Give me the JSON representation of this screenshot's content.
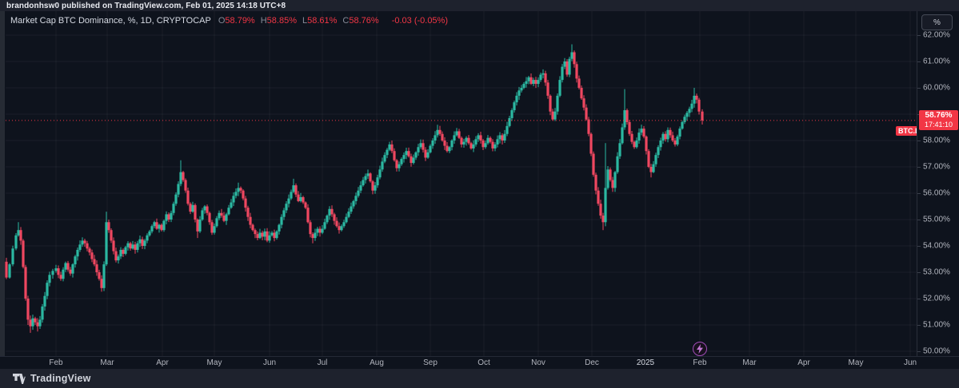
{
  "header": {
    "publish_line": "brandonhsw0 published on TradingView.com, Feb 01, 2025 14:18 UTC+8"
  },
  "legend": {
    "title": "Market Cap BTC Dominance, %, 1D, CRYPTOCAP",
    "ohlc": [
      {
        "label": "O",
        "value": "58.79%"
      },
      {
        "label": "H",
        "value": "58.85%"
      },
      {
        "label": "L",
        "value": "58.61%"
      },
      {
        "label": "C",
        "value": "58.76%"
      }
    ],
    "change": "-0.03 (-0.05%)"
  },
  "price_axis": {
    "unit_button_label": "%",
    "labels": [
      {
        "value": 62,
        "label": "62.00%"
      },
      {
        "value": 61,
        "label": "61.00%"
      },
      {
        "value": 60,
        "label": "60.00%"
      },
      {
        "value": 59,
        "label": "59.00%"
      },
      {
        "value": 58,
        "label": "58.00%"
      },
      {
        "value": 57,
        "label": "57.00%"
      },
      {
        "value": 56,
        "label": "56.00%"
      },
      {
        "value": 55,
        "label": "55.00%"
      },
      {
        "value": 54,
        "label": "54.00%"
      },
      {
        "value": 53,
        "label": "53.00%"
      },
      {
        "value": 52,
        "label": "52.00%"
      },
      {
        "value": 51,
        "label": "51.00%"
      },
      {
        "value": 50,
        "label": "50.00%"
      }
    ]
  },
  "last_price": {
    "symbol_label": "BTC.D",
    "price": "58.76%",
    "countdown": "17:41:10",
    "value": 58.76,
    "color": "#f23645"
  },
  "time_axis": {
    "ticks": [
      {
        "label": "Feb",
        "x": 70,
        "year": false
      },
      {
        "label": "Mar",
        "x": 134,
        "year": false
      },
      {
        "label": "Apr",
        "x": 203,
        "year": false
      },
      {
        "label": "May",
        "x": 268,
        "year": false
      },
      {
        "label": "Jun",
        "x": 337,
        "year": false
      },
      {
        "label": "Jul",
        "x": 403,
        "year": false
      },
      {
        "label": "Aug",
        "x": 471,
        "year": false
      },
      {
        "label": "Sep",
        "x": 538,
        "year": false
      },
      {
        "label": "Oct",
        "x": 605,
        "year": false
      },
      {
        "label": "Nov",
        "x": 673,
        "year": false
      },
      {
        "label": "Dec",
        "x": 740,
        "year": false
      },
      {
        "label": "2025",
        "x": 807,
        "year": true
      },
      {
        "label": "Feb",
        "x": 875,
        "year": false
      },
      {
        "label": "Mar",
        "x": 937,
        "year": false
      },
      {
        "label": "Apr",
        "x": 1005,
        "year": false
      },
      {
        "label": "May",
        "x": 1070,
        "year": false
      },
      {
        "label": "Jun",
        "x": 1138,
        "year": false
      }
    ]
  },
  "idea_marker": {
    "x": 875,
    "icon": "lightning-bolt-icon"
  },
  "footer": {
    "brand": "TradingView"
  },
  "chart_data": {
    "type": "candlestick",
    "title": "Market Cap BTC Dominance",
    "symbol": "CRYPTOCAP:BTC.D",
    "interval": "1D",
    "unit": "%",
    "y_range": [
      50,
      62
    ],
    "grid": true,
    "up_color": "#2bb8a2",
    "down_color": "#ef4760",
    "last_price_line": {
      "value": 58.76,
      "style": "dotted",
      "color": "#f23645"
    },
    "anchors_note": "close-value trajectory read off the chart; x = px position (Jan 2024 -> Feb 1 2025), v = BTC dominance %",
    "anchors": [
      [
        3,
        53.4
      ],
      [
        8,
        52.8
      ],
      [
        12,
        53.3
      ],
      [
        16,
        53.9
      ],
      [
        20,
        54.4
      ],
      [
        23,
        54.6
      ],
      [
        26,
        54.2
      ],
      [
        29,
        53.2
      ],
      [
        32,
        52.0
      ],
      [
        35,
        51.2
      ],
      [
        38,
        50.95
      ],
      [
        41,
        51.25
      ],
      [
        44,
        51.1
      ],
      [
        47,
        50.95
      ],
      [
        50,
        51.2
      ],
      [
        53,
        51.7
      ],
      [
        56,
        52.1
      ],
      [
        59,
        52.6
      ],
      [
        62,
        52.9
      ],
      [
        66,
        53.05
      ],
      [
        70,
        53.15
      ],
      [
        73,
        52.9
      ],
      [
        76,
        52.75
      ],
      [
        79,
        53.1
      ],
      [
        82,
        53.35
      ],
      [
        85,
        53.1
      ],
      [
        88,
        52.95
      ],
      [
        91,
        53.3
      ],
      [
        94,
        53.6
      ],
      [
        97,
        53.85
      ],
      [
        100,
        54.05
      ],
      [
        103,
        54.2
      ],
      [
        106,
        54.1
      ],
      [
        109,
        53.9
      ],
      [
        112,
        53.75
      ],
      [
        115,
        53.5
      ],
      [
        118,
        53.3
      ],
      [
        121,
        53.0
      ],
      [
        124,
        52.75
      ],
      [
        127,
        52.4
      ],
      [
        130,
        53.3
      ],
      [
        133,
        54.9
      ],
      [
        136,
        54.6
      ],
      [
        139,
        54.2
      ],
      [
        142,
        53.8
      ],
      [
        145,
        53.45
      ],
      [
        148,
        53.6
      ],
      [
        151,
        53.85
      ],
      [
        154,
        53.7
      ],
      [
        157,
        53.95
      ],
      [
        160,
        54.1
      ],
      [
        163,
        53.9
      ],
      [
        166,
        54.05
      ],
      [
        169,
        53.85
      ],
      [
        172,
        54.1
      ],
      [
        175,
        54.25
      ],
      [
        178,
        54.0
      ],
      [
        181,
        54.2
      ],
      [
        184,
        54.4
      ],
      [
        187,
        54.55
      ],
      [
        190,
        54.75
      ],
      [
        193,
        54.9
      ],
      [
        196,
        54.65
      ],
      [
        199,
        54.8
      ],
      [
        202,
        54.6
      ],
      [
        205,
        54.95
      ],
      [
        208,
        55.2
      ],
      [
        211,
        55.0
      ],
      [
        214,
        55.25
      ],
      [
        217,
        55.6
      ],
      [
        220,
        55.95
      ],
      [
        223,
        56.35
      ],
      [
        226,
        56.8
      ],
      [
        229,
        56.5
      ],
      [
        232,
        56.1
      ],
      [
        235,
        55.6
      ],
      [
        238,
        55.3
      ],
      [
        241,
        55.55
      ],
      [
        244,
        55.0
      ],
      [
        247,
        54.55
      ],
      [
        250,
        55.0
      ],
      [
        253,
        55.35
      ],
      [
        256,
        55.5
      ],
      [
        259,
        55.25
      ],
      [
        262,
        54.9
      ],
      [
        265,
        54.5
      ],
      [
        268,
        54.75
      ],
      [
        271,
        55.05
      ],
      [
        274,
        55.25
      ],
      [
        277,
        55.15
      ],
      [
        280,
        54.95
      ],
      [
        283,
        55.2
      ],
      [
        286,
        55.45
      ],
      [
        289,
        55.65
      ],
      [
        292,
        55.9
      ],
      [
        295,
        56.05
      ],
      [
        298,
        56.2
      ],
      [
        301,
        56.1
      ],
      [
        304,
        55.8
      ],
      [
        307,
        55.45
      ],
      [
        310,
        55.1
      ],
      [
        313,
        54.8
      ],
      [
        316,
        54.6
      ],
      [
        319,
        54.45
      ],
      [
        322,
        54.3
      ],
      [
        325,
        54.5
      ],
      [
        328,
        54.35
      ],
      [
        331,
        54.55
      ],
      [
        334,
        54.2
      ],
      [
        337,
        54.4
      ],
      [
        340,
        54.5
      ],
      [
        343,
        54.3
      ],
      [
        346,
        54.55
      ],
      [
        349,
        54.8
      ],
      [
        352,
        55.1
      ],
      [
        355,
        55.35
      ],
      [
        358,
        55.6
      ],
      [
        361,
        55.8
      ],
      [
        364,
        56.05
      ],
      [
        367,
        56.3
      ],
      [
        370,
        55.95
      ],
      [
        373,
        55.7
      ],
      [
        376,
        55.85
      ],
      [
        379,
        55.65
      ],
      [
        382,
        55.45
      ],
      [
        385,
        54.9
      ],
      [
        388,
        54.45
      ],
      [
        391,
        54.3
      ],
      [
        394,
        54.5
      ],
      [
        397,
        54.65
      ],
      [
        400,
        54.5
      ],
      [
        403,
        54.65
      ],
      [
        406,
        54.9
      ],
      [
        409,
        55.15
      ],
      [
        412,
        55.4
      ],
      [
        415,
        55.2
      ],
      [
        418,
        54.95
      ],
      [
        421,
        54.75
      ],
      [
        424,
        54.6
      ],
      [
        427,
        54.75
      ],
      [
        430,
        54.9
      ],
      [
        433,
        55.1
      ],
      [
        436,
        55.3
      ],
      [
        439,
        55.5
      ],
      [
        442,
        55.7
      ],
      [
        445,
        55.9
      ],
      [
        448,
        56.1
      ],
      [
        451,
        56.3
      ],
      [
        454,
        56.5
      ],
      [
        457,
        56.65
      ],
      [
        460,
        56.75
      ],
      [
        463,
        56.45
      ],
      [
        466,
        56.1
      ],
      [
        469,
        56.3
      ],
      [
        472,
        56.6
      ],
      [
        475,
        56.9
      ],
      [
        478,
        57.2
      ],
      [
        481,
        57.45
      ],
      [
        484,
        57.65
      ],
      [
        487,
        57.85
      ],
      [
        490,
        57.6
      ],
      [
        493,
        57.25
      ],
      [
        496,
        56.95
      ],
      [
        499,
        57.1
      ],
      [
        502,
        57.3
      ],
      [
        505,
        57.45
      ],
      [
        508,
        57.6
      ],
      [
        511,
        57.4
      ],
      [
        514,
        57.15
      ],
      [
        517,
        57.35
      ],
      [
        520,
        57.55
      ],
      [
        523,
        57.75
      ],
      [
        526,
        57.9
      ],
      [
        529,
        57.65
      ],
      [
        532,
        57.35
      ],
      [
        535,
        57.55
      ],
      [
        538,
        57.8
      ],
      [
        541,
        58.0
      ],
      [
        544,
        58.2
      ],
      [
        547,
        58.4
      ],
      [
        550,
        58.25
      ],
      [
        553,
        58.0
      ],
      [
        556,
        57.8
      ],
      [
        559,
        57.6
      ],
      [
        562,
        57.75
      ],
      [
        565,
        58.0
      ],
      [
        568,
        58.2
      ],
      [
        571,
        58.35
      ],
      [
        574,
        58.1
      ],
      [
        577,
        57.85
      ],
      [
        580,
        57.95
      ],
      [
        583,
        58.1
      ],
      [
        586,
        57.9
      ],
      [
        589,
        57.7
      ],
      [
        592,
        57.85
      ],
      [
        595,
        58.05
      ],
      [
        598,
        58.2
      ],
      [
        601,
        58.0
      ],
      [
        604,
        57.75
      ],
      [
        607,
        57.9
      ],
      [
        610,
        58.1
      ],
      [
        613,
        57.95
      ],
      [
        616,
        57.7
      ],
      [
        619,
        57.85
      ],
      [
        622,
        58.05
      ],
      [
        625,
        58.2
      ],
      [
        628,
        58.0
      ],
      [
        631,
        58.25
      ],
      [
        634,
        58.55
      ],
      [
        637,
        58.85
      ],
      [
        640,
        59.15
      ],
      [
        643,
        59.45
      ],
      [
        646,
        59.7
      ],
      [
        649,
        59.9
      ],
      [
        652,
        60.0
      ],
      [
        655,
        60.15
      ],
      [
        658,
        60.25
      ],
      [
        661,
        60.4
      ],
      [
        664,
        60.15
      ],
      [
        667,
        60.3
      ],
      [
        670,
        60.15
      ],
      [
        673,
        60.3
      ],
      [
        676,
        60.5
      ],
      [
        679,
        60.55
      ],
      [
        682,
        60.2
      ],
      [
        685,
        59.7
      ],
      [
        688,
        59.1
      ],
      [
        691,
        58.8
      ],
      [
        694,
        59.1
      ],
      [
        697,
        59.7
      ],
      [
        700,
        60.3
      ],
      [
        703,
        60.8
      ],
      [
        706,
        61.0
      ],
      [
        709,
        60.5
      ],
      [
        712,
        61.1
      ],
      [
        715,
        61.35
      ],
      [
        718,
        60.9
      ],
      [
        721,
        60.35
      ],
      [
        724,
        60.0
      ],
      [
        727,
        59.6
      ],
      [
        730,
        59.25
      ],
      [
        733,
        58.8
      ],
      [
        736,
        58.25
      ],
      [
        739,
        57.5
      ],
      [
        742,
        56.7
      ],
      [
        745,
        56.1
      ],
      [
        748,
        55.6
      ],
      [
        751,
        55.15
      ],
      [
        754,
        54.9
      ],
      [
        757,
        56.2
      ],
      [
        760,
        56.9
      ],
      [
        763,
        56.5
      ],
      [
        766,
        56.2
      ],
      [
        769,
        56.8
      ],
      [
        772,
        57.4
      ],
      [
        775,
        57.9
      ],
      [
        778,
        58.5
      ],
      [
        781,
        59.15
      ],
      [
        784,
        58.7
      ],
      [
        787,
        58.25
      ],
      [
        790,
        57.95
      ],
      [
        793,
        57.75
      ],
      [
        796,
        58.0
      ],
      [
        799,
        58.3
      ],
      [
        802,
        58.45
      ],
      [
        805,
        58.15
      ],
      [
        808,
        57.6
      ],
      [
        811,
        57.0
      ],
      [
        814,
        56.8
      ],
      [
        817,
        57.1
      ],
      [
        820,
        57.45
      ],
      [
        823,
        57.75
      ],
      [
        826,
        58.0
      ],
      [
        829,
        58.25
      ],
      [
        832,
        58.05
      ],
      [
        835,
        58.4
      ],
      [
        838,
        58.2
      ],
      [
        841,
        58.0
      ],
      [
        844,
        57.85
      ],
      [
        847,
        58.15
      ],
      [
        850,
        58.45
      ],
      [
        853,
        58.7
      ],
      [
        856,
        58.9
      ],
      [
        859,
        59.05
      ],
      [
        862,
        59.2
      ],
      [
        865,
        59.4
      ],
      [
        868,
        59.7
      ],
      [
        871,
        59.55
      ],
      [
        874,
        59.1
      ],
      [
        878,
        58.76
      ]
    ],
    "spikes": [
      {
        "x": 23,
        "h": 54.9
      },
      {
        "x": 35,
        "l": 51.0
      },
      {
        "x": 38,
        "l": 50.7
      },
      {
        "x": 47,
        "l": 50.75
      },
      {
        "x": 127,
        "l": 52.3
      },
      {
        "x": 133,
        "h": 55.3
      },
      {
        "x": 226,
        "h": 57.25
      },
      {
        "x": 247,
        "l": 54.3
      },
      {
        "x": 298,
        "h": 56.4
      },
      {
        "x": 367,
        "h": 56.55
      },
      {
        "x": 391,
        "l": 54.1
      },
      {
        "x": 460,
        "h": 56.85
      },
      {
        "x": 487,
        "h": 57.95
      },
      {
        "x": 547,
        "h": 58.6
      },
      {
        "x": 679,
        "h": 60.7
      },
      {
        "x": 715,
        "h": 61.65
      },
      {
        "x": 754,
        "l": 54.6
      },
      {
        "x": 757,
        "h": 57.9
      },
      {
        "x": 781,
        "h": 59.95
      },
      {
        "x": 814,
        "l": 56.6
      },
      {
        "x": 868,
        "h": 60.0
      }
    ]
  }
}
